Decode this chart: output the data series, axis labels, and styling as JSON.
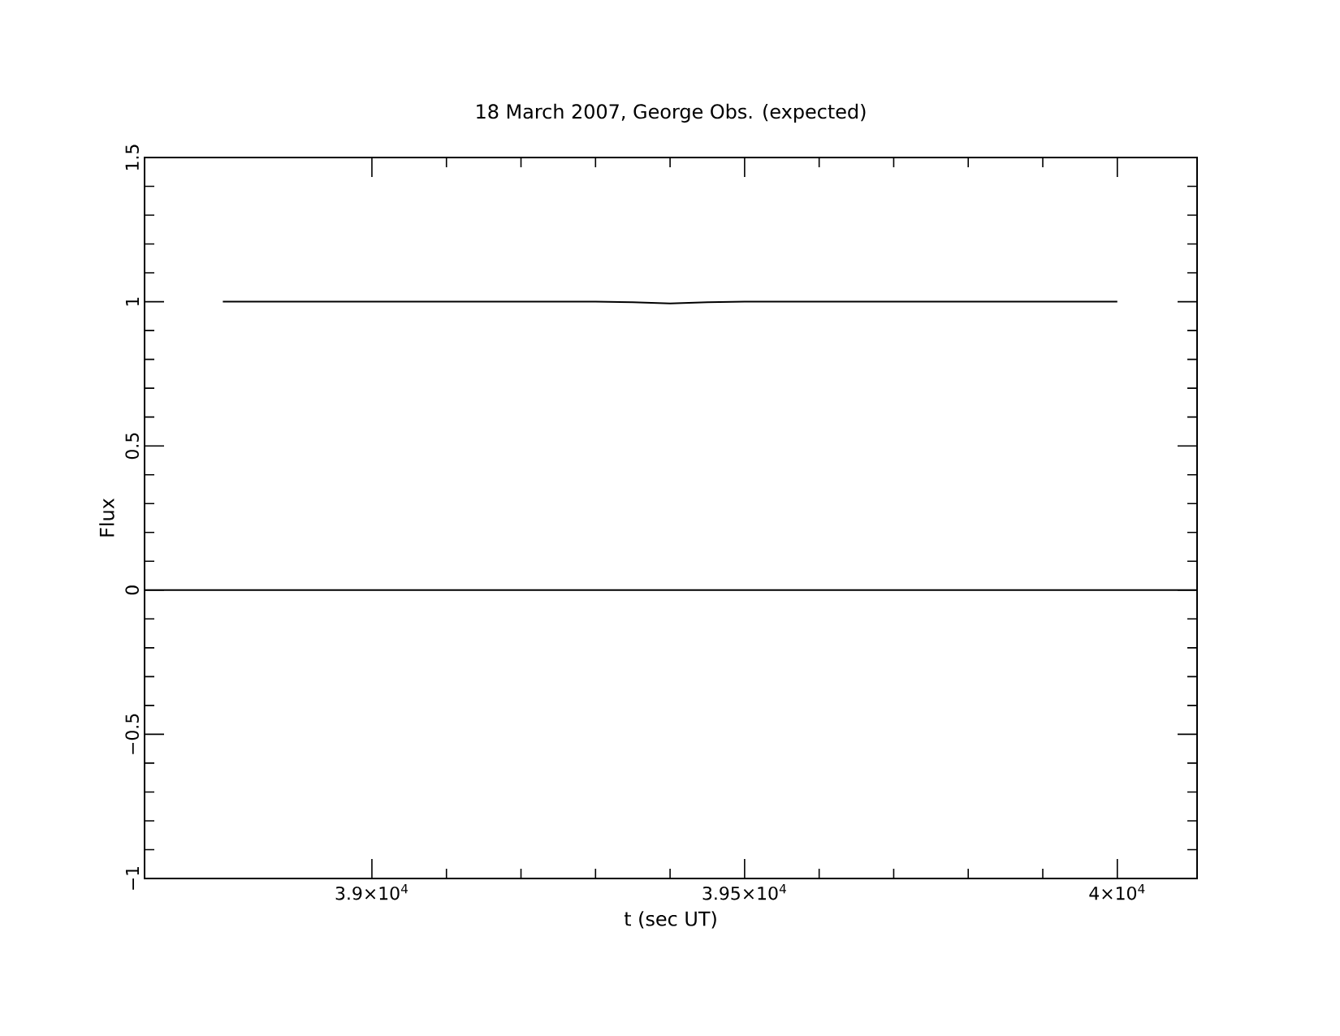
{
  "chart_data": {
    "type": "line",
    "title": "18 March 2007, George Obs. (expected)",
    "xlabel": "t (sec UT)",
    "ylabel": "Flux",
    "x": [
      38800,
      39000,
      39300,
      39350,
      39400,
      39450,
      39500,
      39700,
      40000
    ],
    "series": [
      {
        "color": "#000000",
        "values": [
          1,
          1,
          1,
          0.998,
          0.994,
          0.998,
          1,
          1,
          1
        ]
      }
    ],
    "xlim": [
      38695,
      40107
    ],
    "xticks": [
      {
        "value": 39000,
        "label": "3.9×10$^{4}$"
      },
      {
        "value": 39500,
        "label": "3.95×10$^{4}$"
      },
      {
        "value": 40000,
        "label": "4×10$^{4}$"
      }
    ],
    "ylim": [
      -1,
      1.5
    ],
    "yticks": [
      {
        "value": -1,
        "label": "−1"
      },
      {
        "value": -0.5,
        "label": "−0.5"
      },
      0,
      0.5,
      1,
      1.5
    ],
    "ref_lines": [
      {
        "axis": "y",
        "value": 0,
        "color": "#000000"
      }
    ],
    "marker": "none",
    "line_style": "solid"
  }
}
